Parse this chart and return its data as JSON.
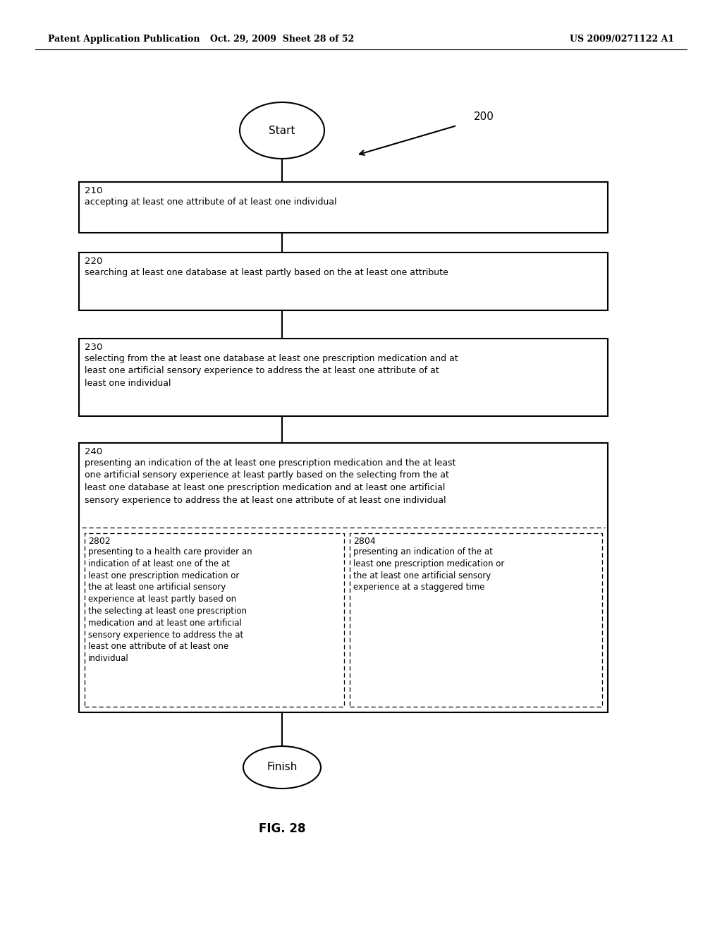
{
  "bg_color": "#ffffff",
  "header_left": "Patent Application Publication",
  "header_mid": "Oct. 29, 2009  Sheet 28 of 52",
  "header_right": "US 2009/0271122 A1",
  "fig_label": "FIG. 28",
  "diagram_label": "200",
  "start_label": "Start",
  "finish_label": "Finish",
  "boxes": [
    {
      "label": "210",
      "text": "accepting at least one attribute of at least one individual"
    },
    {
      "label": "220",
      "text": "searching at least one database at least partly based on the at least one attribute"
    },
    {
      "label": "230",
      "text": "selecting from the at least one database at least one prescription medication and at\nleast one artificial sensory experience to address the at least one attribute of at\nleast one individual"
    },
    {
      "label": "240",
      "text": "presenting an indication of the at least one prescription medication and the at least\none artificial sensory experience at least partly based on the selecting from the at\nleast one database at least one prescription medication and at least one artificial\nsensory experience to address the at least one attribute of at least one individual"
    }
  ],
  "sub_boxes": [
    {
      "label": "2802",
      "text": "presenting to a health care provider an\nindication of at least one of the at\nleast one prescription medication or\nthe at least one artificial sensory\nexperience at least partly based on\nthe selecting at least one prescription\nmedication and at least one artificial\nsensory experience to address the at\nleast one attribute of at least one\nindividual"
    },
    {
      "label": "2804",
      "text": "presenting an indication of the at\nleast one prescription medication or\nthe at least one artificial sensory\nexperience at a staggered time"
    }
  ]
}
